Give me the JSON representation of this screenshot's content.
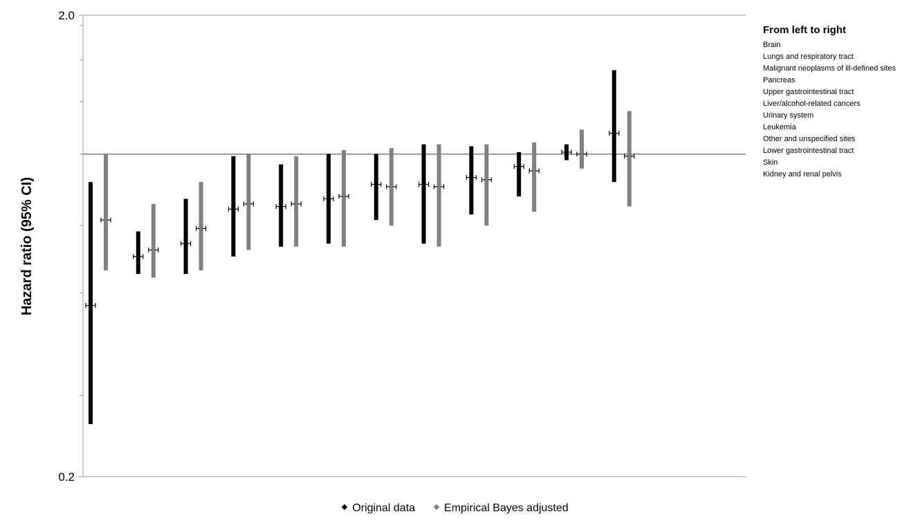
{
  "chart_data": {
    "type": "error-bar",
    "ylabel": "Hazard ratio (95% CI)",
    "yscale": "log",
    "ylim": [
      0.2,
      2.0
    ],
    "ytick_labels": [
      "0.2",
      "2.0"
    ],
    "reference_line": 1.0,
    "legend_title": "From left to right",
    "categories": [
      "Brain",
      "Lungs and respiratory tract",
      "Malignant neoplasms of ill-defined sites",
      "Pancreas",
      "Upper gastrointestinal tract",
      "Liver/alcohol-related cancers",
      "Urinary system",
      "Leukemia",
      "Other and unspecified sites",
      "Lower gastrointestinal tract",
      "Skin",
      "Kidney and renal pelvis"
    ],
    "series": [
      {
        "name": "Original data",
        "color": "#000000",
        "estimate": [
          0.47,
          0.6,
          0.64,
          0.76,
          0.77,
          0.8,
          0.86,
          0.86,
          0.89,
          0.94,
          1.01,
          1.11
        ],
        "lower": [
          0.26,
          0.55,
          0.55,
          0.6,
          0.63,
          0.64,
          0.72,
          0.64,
          0.74,
          0.81,
          0.97,
          0.87
        ],
        "upper": [
          0.87,
          0.68,
          0.8,
          0.99,
          0.95,
          1.0,
          1.0,
          1.05,
          1.04,
          1.01,
          1.05,
          1.52
        ]
      },
      {
        "name": "Empirical Bayes adjusted",
        "color": "#808080",
        "estimate": [
          0.72,
          0.62,
          0.69,
          0.78,
          0.78,
          0.81,
          0.85,
          0.85,
          0.88,
          0.92,
          1.0,
          0.99
        ],
        "lower": [
          0.56,
          0.54,
          0.56,
          0.62,
          0.63,
          0.63,
          0.7,
          0.63,
          0.7,
          0.75,
          0.93,
          0.77
        ],
        "upper": [
          1.0,
          0.78,
          0.87,
          1.0,
          0.99,
          1.02,
          1.03,
          1.05,
          1.05,
          1.06,
          1.13,
          1.24
        ]
      }
    ]
  }
}
